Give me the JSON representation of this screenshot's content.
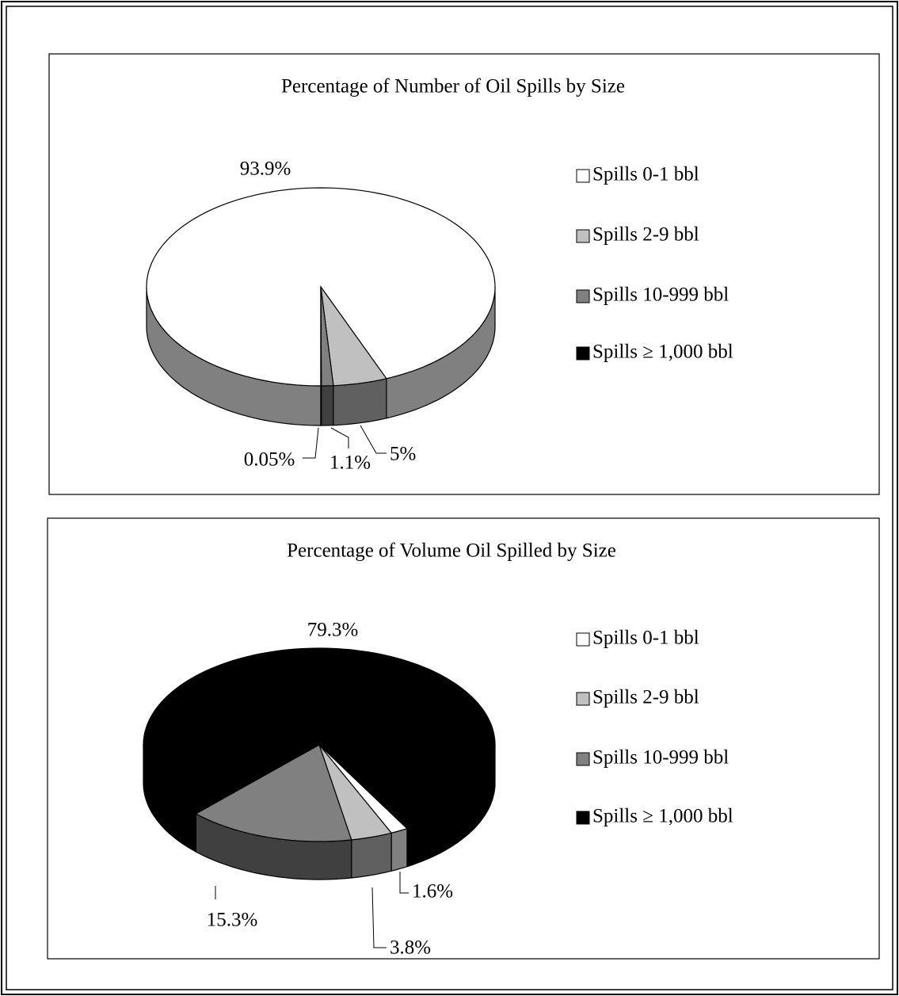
{
  "chart_data": [
    {
      "type": "pie3d",
      "title": "Percentage of  Number of Oil Spills by Size",
      "categories": [
        "Spills 0-1 bbl",
        "Spills 2-9 bbl",
        "Spills 10-999 bbl",
        "Spills ≥ 1,000 bbl"
      ],
      "values": [
        93.9,
        5,
        1.1,
        0.05
      ],
      "value_labels": [
        "93.9%",
        "5%",
        "1.1%",
        "0.05%"
      ],
      "colors": [
        "#ffffff",
        "#c0c0c0",
        "#808080",
        "#000000"
      ],
      "legend": "right"
    },
    {
      "type": "pie3d",
      "title": "Percentage of Volume Oil Spilled by Size",
      "categories": [
        "Spills 0-1 bbl",
        "Spills 2-9 bbl",
        "Spills 10-999 bbl",
        "Spills ≥ 1,000 bbl"
      ],
      "values": [
        1.6,
        3.8,
        15.3,
        79.3
      ],
      "value_labels": [
        "1.6%",
        "3.8%",
        "15.3%",
        "79.3%"
      ],
      "colors": [
        "#ffffff",
        "#c0c0c0",
        "#808080",
        "#000000"
      ],
      "legend": "right"
    }
  ]
}
